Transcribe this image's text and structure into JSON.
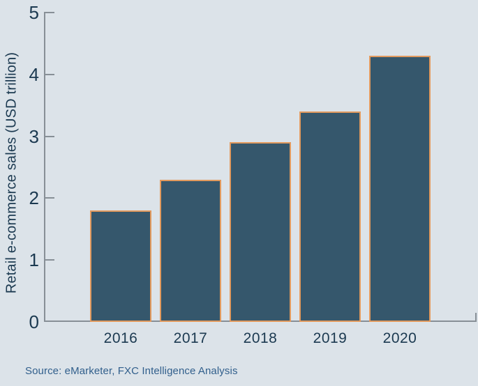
{
  "chart_data": {
    "type": "bar",
    "title": "",
    "categories": [
      "2016",
      "2017",
      "2018",
      "2019",
      "2020"
    ],
    "values": [
      1.8,
      2.3,
      2.9,
      3.4,
      4.3
    ],
    "xlabel": "",
    "ylabel": "Retail e-commerce sales (USD trillion)",
    "ylim": [
      0,
      5
    ],
    "yticks": [
      0,
      1,
      2,
      3,
      4,
      5
    ],
    "grid": false,
    "legend": false,
    "source": "Source: eMarketer, FXC Intelligence Analysis",
    "colors": {
      "background": "#DCE3E9",
      "bar_fill": "#35576C",
      "bar_border": "#E29A5E",
      "axis": "#878F96",
      "text": "#1B3950",
      "source_text": "#315F8C"
    }
  }
}
